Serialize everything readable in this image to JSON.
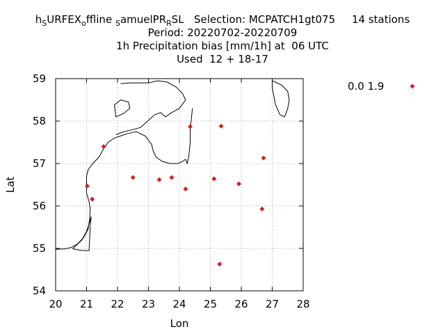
{
  "chart_data": {
    "type": "scatter",
    "title_lines": [
      {
        "segments": [
          {
            "t": "h",
            "sub": false
          },
          {
            "t": "S",
            "sub": true
          },
          {
            "t": "URFEX",
            "sub": false
          },
          {
            "t": "o",
            "sub": true
          },
          {
            "t": "ffline ",
            "sub": false
          },
          {
            "t": "S",
            "sub": true
          },
          {
            "t": "amuelPR",
            "sub": false
          },
          {
            "t": "R",
            "sub": true
          },
          {
            "t": "SL   Selection: MCPATCH1gt075     14 stations",
            "sub": false
          }
        ]
      },
      {
        "segments": [
          {
            "t": "Period: 20220702-20220709",
            "sub": false
          }
        ]
      },
      {
        "segments": [
          {
            "t": "1h Precipitation bias [mm/1h] at  06 UTC",
            "sub": false
          }
        ]
      },
      {
        "segments": [
          {
            "t": "Used  12 + 18-17",
            "sub": false
          }
        ]
      }
    ],
    "xlabel": "Lon",
    "ylabel": "Lat",
    "xlim": [
      20,
      28
    ],
    "ylim": [
      54,
      59
    ],
    "xticks": [
      "20",
      "21",
      "22",
      "23",
      "24",
      "25",
      "26",
      "27",
      "28"
    ],
    "yticks": [
      "54",
      "55",
      "56",
      "57",
      "58",
      "59"
    ],
    "grid": true,
    "legend": {
      "label": "0.0 1.9",
      "position": "top-right-outside"
    },
    "marker_color": "#e0201a",
    "points": [
      {
        "x": 21.55,
        "y": 57.4
      },
      {
        "x": 24.35,
        "y": 57.87
      },
      {
        "x": 25.35,
        "y": 57.88
      },
      {
        "x": 26.72,
        "y": 57.13
      },
      {
        "x": 22.5,
        "y": 56.67
      },
      {
        "x": 23.35,
        "y": 56.62
      },
      {
        "x": 23.75,
        "y": 56.67
      },
      {
        "x": 24.2,
        "y": 56.4
      },
      {
        "x": 25.12,
        "y": 56.64
      },
      {
        "x": 25.92,
        "y": 56.52
      },
      {
        "x": 21.02,
        "y": 56.47
      },
      {
        "x": 21.18,
        "y": 56.16
      },
      {
        "x": 26.67,
        "y": 55.93
      },
      {
        "x": 25.3,
        "y": 54.63
      }
    ],
    "coastlines": [
      [
        [
          20.0,
          54.98
        ],
        [
          20.3,
          54.99
        ],
        [
          20.5,
          55.02
        ],
        [
          20.7,
          55.1
        ],
        [
          20.9,
          55.25
        ],
        [
          21.05,
          55.45
        ],
        [
          21.1,
          55.7
        ],
        [
          21.12,
          55.95
        ],
        [
          21.08,
          56.1
        ],
        [
          21.0,
          56.3
        ],
        [
          21.0,
          56.5
        ],
        [
          21.0,
          56.7
        ],
        [
          21.05,
          56.85
        ],
        [
          21.2,
          57.0
        ],
        [
          21.4,
          57.15
        ],
        [
          21.55,
          57.35
        ],
        [
          21.7,
          57.5
        ],
        [
          21.9,
          57.6
        ],
        [
          22.1,
          57.65
        ],
        [
          22.3,
          57.7
        ],
        [
          22.6,
          57.75
        ],
        [
          22.9,
          57.65
        ],
        [
          23.1,
          57.45
        ],
        [
          23.15,
          57.3
        ],
        [
          23.25,
          57.15
        ],
        [
          23.45,
          57.05
        ],
        [
          23.7,
          57.0
        ],
        [
          23.95,
          57.0
        ],
        [
          24.1,
          57.05
        ],
        [
          24.2,
          57.1
        ],
        [
          24.25,
          57.0
        ],
        [
          24.3,
          57.15
        ],
        [
          24.35,
          57.5
        ],
        [
          24.35,
          57.85
        ],
        [
          24.38,
          58.0
        ],
        [
          24.42,
          58.3
        ]
      ],
      [
        [
          20.55,
          54.99
        ],
        [
          20.85,
          55.2
        ],
        [
          21.0,
          55.4
        ],
        [
          21.1,
          55.62
        ],
        [
          21.15,
          55.75
        ],
        [
          21.12,
          55.55
        ],
        [
          21.1,
          55.25
        ],
        [
          21.08,
          54.95
        ],
        [
          20.85,
          54.95
        ],
        [
          20.55,
          54.99
        ]
      ],
      [
        [
          21.95,
          57.68
        ],
        [
          22.2,
          57.75
        ],
        [
          22.5,
          57.8
        ],
        [
          22.75,
          57.85
        ],
        [
          22.9,
          57.95
        ],
        [
          23.05,
          58.05
        ],
        [
          23.2,
          58.15
        ],
        [
          23.4,
          58.2
        ],
        [
          23.55,
          58.1
        ],
        [
          23.75,
          58.2
        ],
        [
          24.0,
          58.3
        ],
        [
          24.2,
          58.5
        ],
        [
          24.1,
          58.65
        ],
        [
          23.9,
          58.8
        ],
        [
          23.6,
          58.92
        ],
        [
          23.3,
          58.95
        ],
        [
          23.0,
          58.9
        ],
        [
          22.7,
          58.9
        ],
        [
          22.4,
          58.9
        ],
        [
          22.1,
          58.88
        ]
      ],
      [
        [
          21.95,
          58.1
        ],
        [
          22.2,
          58.18
        ],
        [
          22.4,
          58.3
        ],
        [
          22.35,
          58.45
        ],
        [
          22.1,
          58.5
        ],
        [
          21.9,
          58.38
        ],
        [
          21.95,
          58.1
        ]
      ],
      [
        [
          27.0,
          58.95
        ],
        [
          27.3,
          58.85
        ],
        [
          27.5,
          58.7
        ],
        [
          27.55,
          58.5
        ],
        [
          27.5,
          58.3
        ],
        [
          27.4,
          58.1
        ],
        [
          27.25,
          58.15
        ],
        [
          27.1,
          58.4
        ],
        [
          27.05,
          58.6
        ],
        [
          27.0,
          58.8
        ],
        [
          27.0,
          58.95
        ]
      ]
    ]
  }
}
